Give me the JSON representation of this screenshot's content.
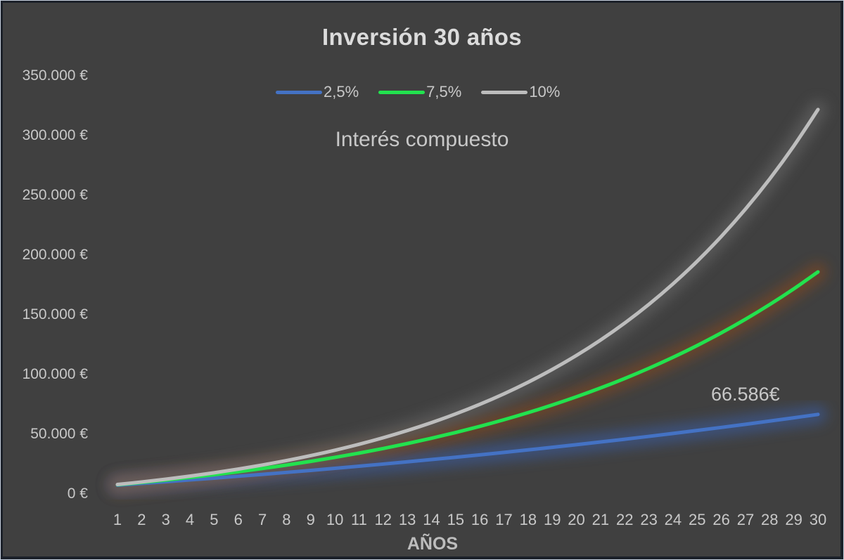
{
  "chart_data": {
    "type": "line",
    "title": "Inversión 30 años",
    "subtitle": "Interés compuesto",
    "xlabel": "AÑOS",
    "ylabel": "",
    "ylim": [
      0,
      350000
    ],
    "y_ticks": [
      "0 €",
      "50.000 €",
      "100.000 €",
      "150.000 €",
      "200.000 €",
      "250.000 €",
      "300.000 €",
      "350.000 €"
    ],
    "y_tick_values": [
      0,
      50000,
      100000,
      150000,
      200000,
      250000,
      300000,
      350000
    ],
    "grid": false,
    "legend_position": "top",
    "x": [
      1,
      2,
      3,
      4,
      5,
      6,
      7,
      8,
      9,
      10,
      11,
      12,
      13,
      14,
      15,
      16,
      17,
      18,
      19,
      20,
      21,
      22,
      23,
      24,
      25,
      26,
      27,
      28,
      29,
      30
    ],
    "series": [
      {
        "name": "2,5%",
        "color": "#4472C4",
        "glow": "#3b5fa8",
        "values": [
          7380,
          8795,
          10245,
          11730,
          13254,
          14815,
          16415,
          18056,
          19737,
          21461,
          23227,
          25038,
          26894,
          28796,
          30746,
          32745,
          34793,
          36893,
          39045,
          41252,
          43513,
          45831,
          48206,
          50642,
          53138,
          55696,
          58319,
          61007,
          63762,
          66586
        ]
      },
      {
        "name": "7,5%",
        "color": "#22E24E",
        "glow": "#8a4a1e",
        "values": [
          7740,
          9610,
          11621,
          13783,
          16107,
          18605,
          21290,
          24177,
          27280,
          30616,
          34202,
          38057,
          42202,
          46657,
          51446,
          56594,
          62129,
          68079,
          74475,
          81350,
          88741,
          96687,
          105229,
          114411,
          124282,
          134893,
          146300,
          158562,
          171744,
          185915
        ]
      },
      {
        "name": "10%",
        "color": "#BDBDBD",
        "glow": "#6a6a6a",
        "values": [
          7920,
          10032,
          12355,
          14911,
          17722,
          20814,
          24215,
          27957,
          32073,
          36600,
          41580,
          47058,
          53084,
          59712,
          67003,
          75023,
          83846,
          93550,
          104225,
          115968,
          128885,
          143093,
          158723,
          175915,
          194826,
          215629,
          238512,
          263683,
          291371,
          321828
        ]
      }
    ],
    "annotations": [
      {
        "text": "66.586€",
        "series": "2,5%",
        "x": 30
      }
    ]
  }
}
